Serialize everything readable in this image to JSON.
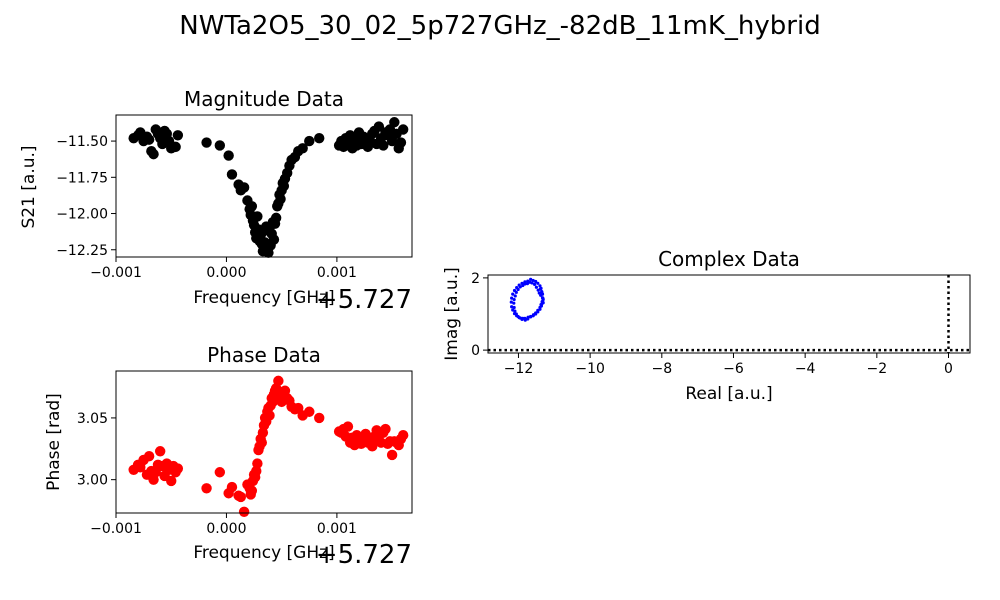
{
  "figure": {
    "suptitle": "NWTa2O5_30_02_5p727GHz_-82dB_11mK_hybrid"
  },
  "chart_data": [
    {
      "id": "magnitude",
      "type": "scatter",
      "title": "Magnitude Data",
      "xlabel": "Frequency [GHz]",
      "ylabel": "S21 [a.u.]",
      "x_offset_label": "+5.727",
      "xlim": [
        -0.001,
        0.00168
      ],
      "ylim": [
        -12.3,
        -11.32
      ],
      "xticks": [
        -0.001,
        0.0,
        0.001
      ],
      "xtick_labels": [
        "−0.001",
        "0.000",
        "0.001"
      ],
      "yticks": [
        -12.25,
        -12.0,
        -11.75,
        -11.5
      ],
      "ytick_labels": [
        "−12.25",
        "−12.00",
        "−11.75",
        "−11.50"
      ],
      "marker_color": "#000000",
      "x": [
        -0.00084,
        -0.0008,
        -0.00078,
        -0.00075,
        -0.00072,
        -0.0007,
        -0.00068,
        -0.00066,
        -0.00064,
        -0.00062,
        -0.0006,
        -0.00058,
        -0.00056,
        -0.00054,
        -0.00052,
        -0.0005,
        -0.00048,
        -0.00046,
        -0.00044,
        -0.00018,
        -6e-05,
        2e-05,
        5e-05,
        0.00011,
        0.00013,
        0.00016,
        0.00019,
        0.00021,
        0.00022,
        0.00023,
        0.00024,
        0.00025,
        0.00026,
        0.00027,
        0.00028,
        0.00029,
        0.0003,
        0.00031,
        0.00032,
        0.00033,
        0.00034,
        0.00035,
        0.00036,
        0.00037,
        0.00038,
        0.00039,
        0.0004,
        0.00041,
        0.00042,
        0.00043,
        0.00044,
        0.00045,
        0.00046,
        0.00047,
        0.00048,
        0.00049,
        0.0005,
        0.00051,
        0.00052,
        0.00053,
        0.00055,
        0.00057,
        0.00059,
        0.00062,
        0.00065,
        0.00069,
        0.00075,
        0.00084,
        0.00102,
        0.00104,
        0.00106,
        0.00108,
        0.0011,
        0.00112,
        0.00114,
        0.00116,
        0.00118,
        0.0012,
        0.00122,
        0.00124,
        0.00126,
        0.00128,
        0.0013,
        0.00132,
        0.00134,
        0.00136,
        0.00138,
        0.0014,
        0.00142,
        0.00144,
        0.00146,
        0.00148,
        0.0015,
        0.00152,
        0.00154,
        0.00156,
        0.00158,
        0.0016
      ],
      "y": [
        -11.48,
        -11.46,
        -11.44,
        -11.5,
        -11.47,
        -11.49,
        -11.57,
        -11.59,
        -11.42,
        -11.45,
        -11.48,
        -11.52,
        -11.43,
        -11.45,
        -11.5,
        -11.55,
        -11.54,
        -11.54,
        -11.46,
        -11.51,
        -11.53,
        -11.6,
        -11.73,
        -11.8,
        -11.84,
        -11.82,
        -11.91,
        -11.97,
        -12.01,
        -11.95,
        -12.05,
        -12.08,
        -12.13,
        -12.17,
        -12.02,
        -12.11,
        -12.19,
        -12.15,
        -12.21,
        -12.26,
        -12.12,
        -12.2,
        -12.09,
        -12.23,
        -12.27,
        -12.1,
        -12.22,
        -12.14,
        -12.06,
        -12.18,
        -12.07,
        -12.03,
        -11.95,
        -11.93,
        -11.87,
        -11.9,
        -11.84,
        -11.79,
        -11.81,
        -11.76,
        -11.72,
        -11.67,
        -11.63,
        -11.61,
        -11.57,
        -11.55,
        -11.5,
        -11.48,
        -11.53,
        -11.5,
        -11.54,
        -11.48,
        -11.51,
        -11.46,
        -11.55,
        -11.49,
        -11.53,
        -11.44,
        -11.52,
        -11.47,
        -11.49,
        -11.54,
        -11.5,
        -11.45,
        -11.43,
        -11.52,
        -11.4,
        -11.48,
        -11.53,
        -11.44,
        -11.46,
        -11.42,
        -11.5,
        -11.37,
        -11.45,
        -11.55,
        -11.51,
        -11.42
      ]
    },
    {
      "id": "phase",
      "type": "scatter",
      "title": "Phase Data",
      "xlabel": "Frequency [GHz]",
      "ylabel": "Phase [rad]",
      "x_offset_label": "+5.727",
      "xlim": [
        -0.001,
        0.00168
      ],
      "ylim": [
        2.973,
        3.088
      ],
      "xticks": [
        -0.001,
        0.0,
        0.001
      ],
      "xtick_labels": [
        "−0.001",
        "0.000",
        "0.001"
      ],
      "yticks": [
        3.0,
        3.05
      ],
      "ytick_labels": [
        "3.00",
        "3.05"
      ],
      "marker_color": "#ff0000",
      "x": [
        -0.00084,
        -0.0008,
        -0.00078,
        -0.00075,
        -0.00072,
        -0.0007,
        -0.00068,
        -0.00066,
        -0.00064,
        -0.00062,
        -0.0006,
        -0.00058,
        -0.00056,
        -0.00054,
        -0.00052,
        -0.0005,
        -0.00048,
        -0.00046,
        -0.00044,
        -0.00018,
        -6e-05,
        2e-05,
        5e-05,
        0.00011,
        0.00013,
        0.00016,
        0.00019,
        0.00021,
        0.00022,
        0.00023,
        0.00024,
        0.00025,
        0.00026,
        0.00027,
        0.00028,
        0.00029,
        0.0003,
        0.00031,
        0.00032,
        0.00033,
        0.00034,
        0.00035,
        0.00036,
        0.00037,
        0.00038,
        0.00039,
        0.0004,
        0.00041,
        0.00042,
        0.00043,
        0.00044,
        0.00045,
        0.00046,
        0.00047,
        0.00048,
        0.00049,
        0.0005,
        0.00051,
        0.00052,
        0.00053,
        0.00055,
        0.00057,
        0.00059,
        0.00062,
        0.00065,
        0.00069,
        0.00075,
        0.00084,
        0.00102,
        0.00104,
        0.00106,
        0.00108,
        0.0011,
        0.00112,
        0.00114,
        0.00116,
        0.00118,
        0.0012,
        0.00122,
        0.00124,
        0.00126,
        0.00128,
        0.0013,
        0.00132,
        0.00134,
        0.00136,
        0.00138,
        0.0014,
        0.00142,
        0.00144,
        0.00146,
        0.00148,
        0.0015,
        0.00152,
        0.00154,
        0.00156,
        0.00158,
        0.0016
      ],
      "y": [
        3.008,
        3.012,
        3.01,
        3.016,
        3.004,
        3.019,
        3.007,
        3.0,
        3.006,
        3.012,
        3.023,
        3.011,
        3.003,
        3.013,
        3.008,
        2.999,
        3.011,
        3.006,
        3.009,
        2.993,
        3.006,
        2.989,
        2.994,
        2.987,
        2.986,
        2.974,
        2.996,
        2.993,
        2.988,
        2.991,
        2.999,
        3.004,
        3.002,
        3.007,
        3.013,
        3.024,
        3.027,
        3.033,
        3.03,
        3.038,
        3.044,
        3.05,
        3.047,
        3.055,
        3.058,
        3.052,
        3.06,
        3.066,
        3.063,
        3.069,
        3.072,
        3.074,
        3.068,
        3.08,
        3.066,
        3.071,
        3.063,
        3.07,
        3.067,
        3.072,
        3.066,
        3.064,
        3.059,
        3.057,
        3.058,
        3.052,
        3.055,
        3.05,
        3.039,
        3.038,
        3.041,
        3.035,
        3.043,
        3.03,
        3.034,
        3.028,
        3.036,
        3.031,
        3.029,
        3.034,
        3.037,
        3.03,
        3.033,
        3.027,
        3.035,
        3.04,
        3.032,
        3.03,
        3.038,
        3.041,
        3.029,
        3.031,
        3.02,
        3.031,
        3.03,
        3.028,
        3.033,
        3.036
      ]
    },
    {
      "id": "complex",
      "type": "scatter",
      "title": "Complex Data",
      "xlabel": "Real [a.u.]",
      "ylabel": "Imag [a.u.]",
      "xlim": [
        -12.85,
        0.6
      ],
      "ylim": [
        -0.08,
        2.08
      ],
      "xticks": [
        -12,
        -10,
        -8,
        -6,
        -4,
        -2,
        0
      ],
      "xtick_labels": [
        "−12",
        "−10",
        "−8",
        "−6",
        "−4",
        "−2",
        "0"
      ],
      "yticks": [
        0,
        2
      ],
      "ytick_labels": [
        "0",
        "2"
      ],
      "marker_color": "#0000ff",
      "reference_lines": {
        "x": 0,
        "y": 0
      },
      "x": [
        -11.31,
        -11.32,
        -11.33,
        -11.35,
        -11.37,
        -11.4,
        -11.46,
        -11.52,
        -11.59,
        -11.66,
        -11.74,
        -11.82,
        -11.9,
        -11.98,
        -12.05,
        -12.11,
        -12.16,
        -12.19,
        -12.2,
        -12.19,
        -12.16,
        -12.11,
        -12.05,
        -11.98,
        -11.9,
        -11.82,
        -11.74,
        -11.66,
        -11.59,
        -11.52,
        -11.46,
        -11.4,
        -11.36,
        -11.33,
        -11.32,
        -11.31,
        -11.36,
        -11.38,
        -11.42,
        -11.45,
        -11.5,
        -11.55,
        -11.62,
        -11.68,
        -11.75,
        -11.82,
        -11.88,
        -11.95,
        -12.01,
        -12.06,
        -12.09,
        -12.12,
        -12.13,
        -12.12,
        -12.1,
        -12.06,
        -12.01,
        -11.95,
        -11.88,
        -11.81,
        -11.73,
        -11.66,
        -11.58,
        -11.52,
        -11.46,
        -11.4,
        -11.37,
        -11.34,
        -11.33,
        -11.33,
        -11.35,
        -11.39
      ],
      "y": [
        1.31,
        1.44,
        1.55,
        1.62,
        1.71,
        1.78,
        1.85,
        1.9,
        1.93,
        1.96,
        1.91,
        1.89,
        1.85,
        1.8,
        1.73,
        1.65,
        1.55,
        1.44,
        1.33,
        1.2,
        1.11,
        1.01,
        0.95,
        0.9,
        0.85,
        0.88,
        0.86,
        0.92,
        0.95,
        1.0,
        1.06,
        1.13,
        1.22,
        1.3,
        1.37,
        1.41,
        1.26,
        1.52,
        1.58,
        1.66,
        1.74,
        1.82,
        1.86,
        1.88,
        1.84,
        1.83,
        1.79,
        1.75,
        1.68,
        1.6,
        1.5,
        1.4,
        1.3,
        1.18,
        1.08,
        1.0,
        0.93,
        0.89,
        0.88,
        0.83,
        0.91,
        0.93,
        0.98,
        1.03,
        1.1,
        1.18,
        1.26,
        1.34,
        1.45,
        1.55,
        1.6,
        1.69
      ]
    }
  ]
}
